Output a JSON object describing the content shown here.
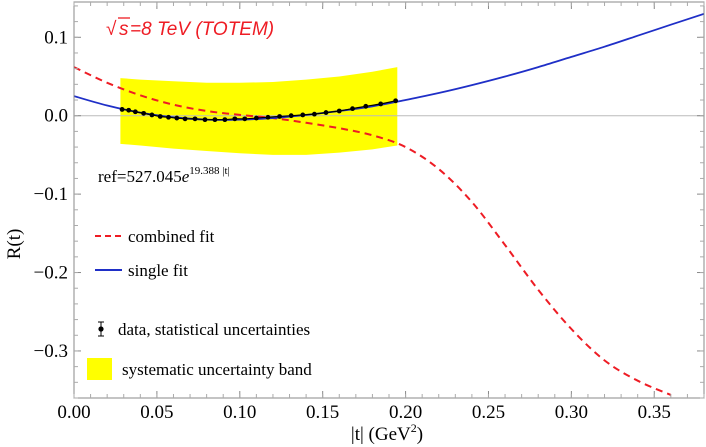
{
  "chart_data": {
    "type": "line",
    "title_parts": {
      "sqrt": "s",
      "rest": " =8 TeV (TOTEM)"
    },
    "title_color": "#ee1c24",
    "xlabel": "|t| (GeV",
    "xlabel_sup": "2",
    "xlabel_end": ")",
    "ylabel": "R(t)",
    "xlim": [
      0.0,
      0.38
    ],
    "ylim": [
      -0.36,
      0.145
    ],
    "x_ticks": [
      0.0,
      0.05,
      0.1,
      0.15,
      0.2,
      0.25,
      0.3,
      0.35
    ],
    "x_tick_labels": [
      "0.00",
      "0.05",
      "0.10",
      "0.15",
      "0.20",
      "0.25",
      "0.30",
      "0.35"
    ],
    "y_ticks": [
      0.1,
      0.0,
      -0.1,
      -0.2,
      -0.3
    ],
    "y_tick_labels": [
      "0.1",
      "0.0",
      "−0.1",
      "−0.2",
      "−0.3"
    ],
    "annotation": {
      "base": "ref=527.045",
      "e": "e",
      "exponent": "19.388 |t|"
    },
    "series": [
      {
        "name": "combined fit",
        "color": "#ee1c24",
        "style": "dashed",
        "x": [
          0.0,
          0.02,
          0.04,
          0.06,
          0.08,
          0.1,
          0.12,
          0.14,
          0.16,
          0.18,
          0.2,
          0.22,
          0.24,
          0.26,
          0.28,
          0.3,
          0.32,
          0.34,
          0.36
        ],
        "y": [
          0.062,
          0.042,
          0.026,
          0.014,
          0.006,
          0.001,
          -0.003,
          -0.009,
          -0.016,
          -0.025,
          -0.04,
          -0.068,
          -0.11,
          -0.165,
          -0.222,
          -0.272,
          -0.312,
          -0.338,
          -0.356
        ]
      },
      {
        "name": "single fit",
        "color": "#1f2fc7",
        "style": "solid",
        "x": [
          0.0,
          0.02,
          0.04,
          0.06,
          0.08,
          0.1,
          0.12,
          0.14,
          0.16,
          0.18,
          0.2,
          0.22,
          0.24,
          0.26,
          0.28,
          0.3,
          0.32,
          0.34,
          0.36,
          0.38
        ],
        "y": [
          0.025,
          0.013,
          0.004,
          -0.002,
          -0.005,
          -0.005,
          -0.003,
          0.001,
          0.006,
          0.012,
          0.02,
          0.029,
          0.039,
          0.05,
          0.062,
          0.075,
          0.088,
          0.102,
          0.116,
          0.13
        ]
      }
    ],
    "data_points": {
      "name": "data, statistical uncertainties",
      "color": "#000000",
      "x": [
        0.029,
        0.033,
        0.037,
        0.042,
        0.047,
        0.052,
        0.057,
        0.062,
        0.067,
        0.073,
        0.079,
        0.085,
        0.091,
        0.097,
        0.103,
        0.11,
        0.117,
        0.124,
        0.131,
        0.138,
        0.145,
        0.152,
        0.16,
        0.168,
        0.176,
        0.185,
        0.194
      ],
      "y": [
        0.008,
        0.007,
        0.005,
        0.003,
        0.001,
        -0.001,
        -0.002,
        -0.003,
        -0.004,
        -0.004,
        -0.005,
        -0.005,
        -0.005,
        -0.004,
        -0.004,
        -0.003,
        -0.002,
        -0.001,
        0.0,
        0.001,
        0.002,
        0.004,
        0.006,
        0.009,
        0.012,
        0.015,
        0.019
      ]
    },
    "band": {
      "name": "systematic uncertainty band",
      "color": "#ffff00",
      "x": [
        0.028,
        0.04,
        0.06,
        0.08,
        0.1,
        0.12,
        0.14,
        0.16,
        0.18,
        0.195
      ],
      "upper": [
        0.048,
        0.046,
        0.044,
        0.042,
        0.042,
        0.043,
        0.046,
        0.05,
        0.056,
        0.062
      ],
      "lower": [
        -0.036,
        -0.038,
        -0.042,
        -0.045,
        -0.048,
        -0.05,
        -0.05,
        -0.047,
        -0.043,
        -0.038
      ]
    },
    "hline": {
      "y": 0.0,
      "color": "#bbbbbb"
    },
    "legend_position": "bottom-left"
  }
}
